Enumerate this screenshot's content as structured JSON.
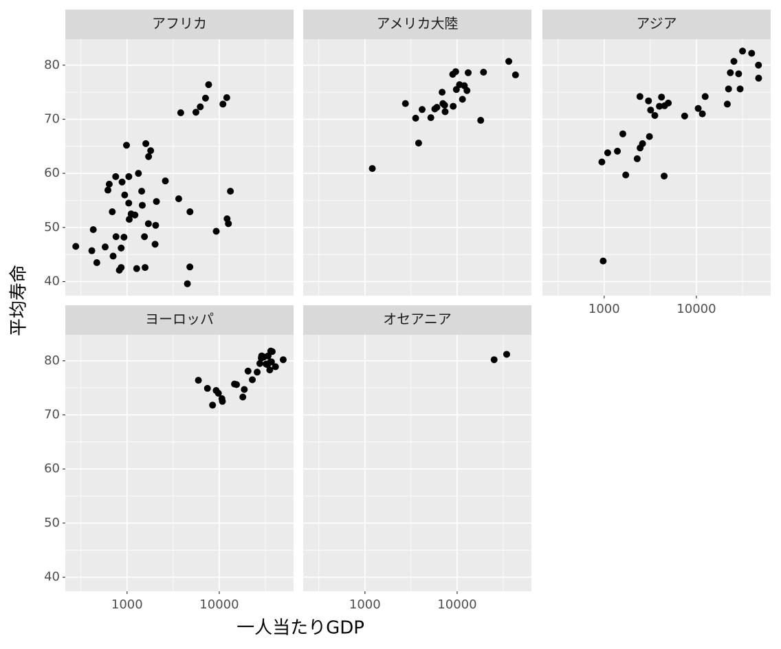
{
  "chart_data": {
    "type": "scatter",
    "xlabel": "一人当たりGDP",
    "ylabel": "平均寿命",
    "xscale": "log",
    "xlim": [
      214,
      63930
    ],
    "ylim": [
      37.4,
      84.8
    ],
    "xticks": [
      1000,
      10000
    ],
    "yticks": [
      40,
      50,
      60,
      70,
      80
    ],
    "grid": true,
    "minor_grid": true,
    "color": "#000000",
    "facets": [
      {
        "title": "アフリカ",
        "x": [
          6223,
          4797,
          1441,
          12570,
          1217,
          430,
          2042,
          706,
          1704,
          986,
          278,
          3633,
          1545,
          2082,
          5581,
          12154,
          641,
          691,
          13206,
          753,
          1328,
          943,
          579,
          1463,
          1569,
          415,
          12057,
          1045,
          759,
          1043,
          1803,
          10957,
          3820,
          824,
          4811,
          620,
          2014,
          7670,
          863,
          1598,
          1712,
          863,
          926,
          9270,
          2602,
          4513,
          1107,
          883,
          7093,
          1056,
          1271,
          470
        ],
        "values": [
          72.3,
          42.7,
          56.7,
          50.7,
          52.3,
          49.6,
          50.4,
          44.7,
          50.7,
          65.2,
          46.5,
          55.3,
          48.3,
          54.8,
          71.3,
          51.6,
          58.0,
          52.9,
          56.7,
          59.4,
          60.0,
          56.0,
          46.4,
          54.1,
          42.6,
          45.7,
          74.0,
          59.4,
          48.3,
          54.5,
          64.2,
          72.8,
          71.2,
          42.1,
          52.9,
          56.9,
          46.9,
          76.4,
          46.2,
          65.5,
          63.1,
          42.6,
          48.2,
          49.3,
          58.6,
          39.6,
          52.5,
          58.4,
          73.9,
          51.5,
          42.4,
          43.5
        ]
      },
      {
        "title": "アメリカ大陸",
        "x": [
          12779,
          3822,
          9066,
          36319,
          13172,
          7007,
          9645,
          8948,
          6025,
          6873,
          5728,
          5186,
          1202,
          3548,
          7321,
          11978,
          2749,
          9809,
          4173,
          7409,
          19329,
          18009,
          42952,
          10611,
          11416
        ],
        "values": [
          75.3,
          65.6,
          72.4,
          80.7,
          78.6,
          72.9,
          78.8,
          78.3,
          72.2,
          75.0,
          71.9,
          70.3,
          60.9,
          70.2,
          72.6,
          76.2,
          72.9,
          75.5,
          71.8,
          71.4,
          78.7,
          69.8,
          78.2,
          76.4,
          73.7
        ]
      },
      {
        "title": "アジア",
        "x": [
          975,
          29796,
          1391,
          1714,
          4959,
          39725,
          2452,
          3541,
          11606,
          4471,
          25523,
          31656,
          4519,
          1593,
          23348,
          47307,
          10461,
          12452,
          3096,
          944,
          1091,
          22316,
          2606,
          3190,
          21655,
          47143,
          3970,
          4185,
          28718,
          7458,
          2442,
          3025,
          2281
        ],
        "values": [
          43.8,
          75.6,
          64.1,
          59.7,
          73.0,
          82.2,
          64.7,
          70.7,
          71.0,
          59.5,
          80.7,
          82.6,
          72.5,
          67.3,
          78.6,
          77.6,
          72.0,
          74.2,
          66.8,
          62.1,
          63.8,
          75.6,
          65.5,
          71.7,
          72.8,
          80.0,
          72.4,
          74.1,
          78.4,
          70.6,
          74.2,
          73.4,
          62.7
        ]
      },
      {
        "title": "ヨーロッパ",
        "x": [
          5937,
          36126,
          33693,
          7446,
          10681,
          14619,
          22833,
          35278,
          33207,
          30470,
          32170,
          27538,
          18009,
          36181,
          40676,
          28570,
          9254,
          36798,
          49357,
          15390,
          20510,
          10808,
          9787,
          18678,
          25768,
          28821,
          33860,
          37506,
          8458,
          33203
        ],
        "values": [
          76.4,
          79.8,
          79.4,
          74.9,
          73.0,
          75.7,
          76.5,
          78.3,
          79.3,
          80.7,
          79.4,
          79.5,
          73.3,
          81.8,
          78.9,
          80.5,
          74.5,
          79.8,
          80.2,
          75.6,
          78.1,
          72.5,
          74.0,
          74.7,
          77.9,
          80.9,
          80.9,
          81.7,
          71.8,
          79.4
        ]
      },
      {
        "title": "オセアニア",
        "x": [
          34435,
          25185
        ],
        "values": [
          81.2,
          80.2
        ]
      }
    ]
  }
}
